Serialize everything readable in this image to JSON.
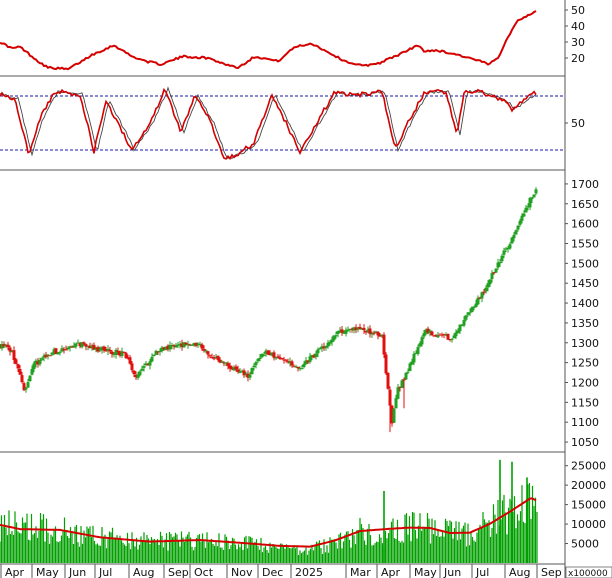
{
  "chart_data": [
    {
      "type": "line",
      "panel": "indicator-top",
      "ylim": [
        10,
        55
      ],
      "yticks": [
        20,
        30,
        40,
        50
      ],
      "line_color": "#d40000",
      "x_index": [
        0,
        12,
        20,
        38,
        48,
        68,
        79,
        92,
        114,
        132,
        146,
        161,
        183,
        208,
        226,
        238,
        255,
        278,
        295,
        312,
        345,
        363,
        380,
        402,
        418,
        424,
        435,
        458,
        480,
        489,
        498,
        506,
        518,
        531,
        537
      ],
      "values": [
        30,
        26,
        27,
        18,
        14,
        13,
        17,
        22,
        28,
        21,
        18,
        16,
        21,
        20,
        16,
        14,
        21,
        18,
        27,
        29,
        18,
        15,
        17,
        23,
        28,
        24,
        25,
        22,
        18,
        16,
        20,
        31,
        44,
        47,
        50
      ]
    },
    {
      "type": "line",
      "panel": "oscillator-middle",
      "ylim": [
        0,
        100
      ],
      "yticks": [
        50
      ],
      "overbought": 80,
      "oversold": 20,
      "line_color": "#d40000",
      "ref_line_color": "#1a1aa8",
      "x_index": [
        0,
        15,
        29,
        40,
        55,
        80,
        94,
        106,
        125,
        131,
        150,
        165,
        181,
        195,
        211,
        224,
        239,
        254,
        272,
        300,
        318,
        335,
        346,
        365,
        382,
        395,
        410,
        425,
        446,
        457,
        464,
        480,
        508,
        511,
        536
      ],
      "values": [
        82,
        77,
        15,
        55,
        85,
        82,
        18,
        75,
        35,
        20,
        50,
        88,
        40,
        80,
        50,
        10,
        16,
        28,
        82,
        18,
        53,
        85,
        81,
        82,
        85,
        20,
        55,
        84,
        85,
        38,
        85,
        85,
        72,
        65,
        84
      ]
    },
    {
      "type": "candlestick",
      "panel": "price",
      "ylim": [
        1030,
        1730
      ],
      "yticks": [
        1050,
        1100,
        1150,
        1200,
        1250,
        1300,
        1350,
        1400,
        1450,
        1500,
        1550,
        1600,
        1650,
        1700
      ],
      "up_color": "#22a022",
      "down_color": "#e01010",
      "x_index": [
        0,
        12,
        24,
        34,
        52,
        80,
        95,
        125,
        136,
        160,
        195,
        216,
        248,
        265,
        300,
        340,
        360,
        382,
        386,
        392,
        397,
        403,
        425,
        452,
        480,
        498,
        510,
        531,
        537
      ],
      "values": [
        1295,
        1280,
        1180,
        1245,
        1275,
        1298,
        1285,
        1272,
        1215,
        1285,
        1300,
        1260,
        1215,
        1280,
        1235,
        1330,
        1335,
        1320,
        1230,
        1100,
        1180,
        1205,
        1330,
        1310,
        1415,
        1500,
        1555,
        1665,
        1690
      ]
    },
    {
      "type": "bar",
      "panel": "volume",
      "ylim": [
        0,
        28000
      ],
      "yticks": [
        5000,
        10000,
        15000,
        20000,
        25000
      ],
      "unit_label": "x100000",
      "bar_color": "#00a000",
      "ma_color": "#d40000",
      "x_index": [
        0,
        20,
        60,
        100,
        150,
        200,
        240,
        280,
        310,
        335,
        360,
        385,
        410,
        430,
        450,
        470,
        490,
        510,
        531,
        537
      ],
      "values": [
        10000,
        9500,
        8500,
        6500,
        5500,
        6000,
        5000,
        4000,
        3500,
        5000,
        8000,
        7500,
        9500,
        9000,
        8000,
        7500,
        10500,
        13500,
        16500,
        16000
      ],
      "ma_values": [
        9800,
        8700,
        8500,
        6600,
        5500,
        5900,
        5200,
        4400,
        4200,
        5800,
        8200,
        8700,
        9100,
        9000,
        7700,
        7800,
        10100,
        13200,
        16700,
        16000
      ],
      "spikes": [
        {
          "x": 384,
          "v": 18500
        },
        {
          "x": 500,
          "v": 26500
        },
        {
          "x": 512,
          "v": 26000
        },
        {
          "x": 527,
          "v": 22000
        }
      ]
    }
  ],
  "time_axis": {
    "months": [
      {
        "label": "Apr",
        "x": 5
      },
      {
        "label": "May",
        "x": 36
      },
      {
        "label": "Jun",
        "x": 69
      },
      {
        "label": "Jul",
        "x": 99
      },
      {
        "label": "Aug",
        "x": 133
      },
      {
        "label": "Sep",
        "x": 168
      },
      {
        "label": "Oct",
        "x": 194
      },
      {
        "label": "Nov",
        "x": 231
      },
      {
        "label": "Dec",
        "x": 262
      },
      {
        "label": "2025",
        "x": 295
      },
      {
        "label": "Mar",
        "x": 350
      },
      {
        "label": "Apr",
        "x": 381
      },
      {
        "label": "May",
        "x": 414
      },
      {
        "label": "Jun",
        "x": 444
      },
      {
        "label": "Jul",
        "x": 476
      },
      {
        "label": "Aug",
        "x": 509
      },
      {
        "label": "Sep",
        "x": 541
      }
    ]
  }
}
